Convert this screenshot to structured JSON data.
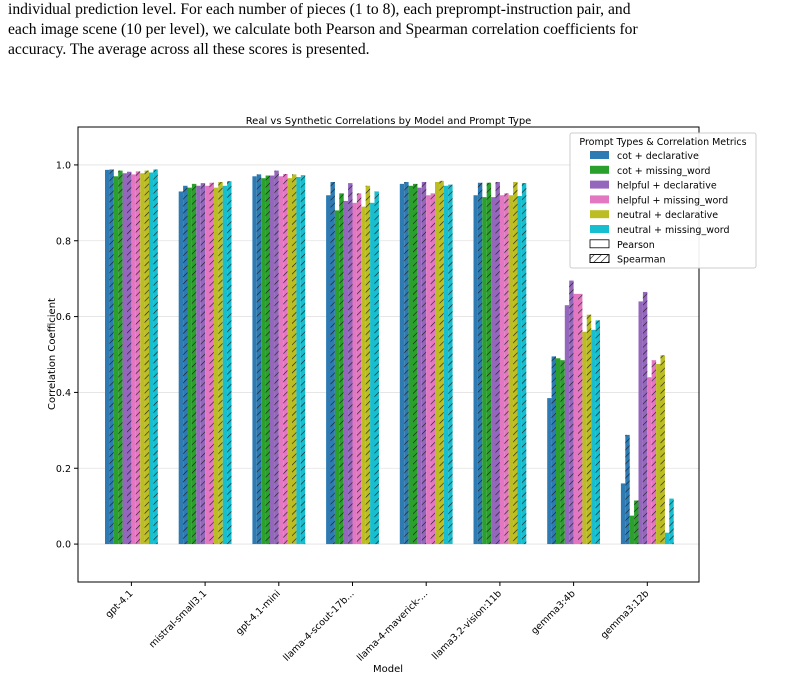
{
  "paragraph": {
    "line1": "individual prediction level. For each number of pieces (1 to 8), each preprompt-instruction pair, and",
    "line2": "each image scene (10 per level), we calculate both Pearson and Spearman correlation coefficients for",
    "line3": "accuracy. The average across all these scores is presented."
  },
  "chart_data": {
    "type": "bar",
    "title": "Real vs Synthetic Correlations by Model and Prompt Type",
    "xlabel": "Model",
    "ylabel": "Correlation Coefficient",
    "ylim": [
      -0.1,
      1.1
    ],
    "yticks": [
      "0.0",
      "0.2",
      "0.4",
      "0.6",
      "0.8",
      "1.0"
    ],
    "grid": "horizontal",
    "legend_position": "top-right",
    "legend_title": "Prompt Types & Correlation Metrics",
    "categories": [
      "gpt-4.1",
      "mistral-small3.1",
      "gpt-4.1-mini",
      "llama-4-scout-17b...",
      "llama-4-maverick-...",
      "llama3.2-vision:11b",
      "gemma3:4b",
      "gemma3:12b"
    ],
    "metrics": [
      "Pearson",
      "Spearman"
    ],
    "series": [
      {
        "name": "cot + declarative",
        "color": "#2e7bb4",
        "pearson": [
          0.987,
          0.93,
          0.97,
          0.92,
          0.95,
          0.92,
          0.385,
          0.16
        ],
        "spearman": [
          0.988,
          0.945,
          0.975,
          0.955,
          0.955,
          0.953,
          0.495,
          0.288
        ]
      },
      {
        "name": "cot + missing_word",
        "color": "#2ca02c",
        "pearson": [
          0.97,
          0.94,
          0.965,
          0.88,
          0.945,
          0.915,
          0.49,
          0.075
        ],
        "spearman": [
          0.985,
          0.95,
          0.972,
          0.925,
          0.95,
          0.953,
          0.485,
          0.115
        ]
      },
      {
        "name": "helpful + declarative",
        "color": "#9467bd",
        "pearson": [
          0.978,
          0.945,
          0.972,
          0.905,
          0.94,
          0.915,
          0.63,
          0.64
        ],
        "spearman": [
          0.982,
          0.952,
          0.985,
          0.952,
          0.955,
          0.955,
          0.695,
          0.665
        ]
      },
      {
        "name": "helpful + missing_word",
        "color": "#e377c2",
        "pearson": [
          0.975,
          0.945,
          0.97,
          0.9,
          0.92,
          0.92,
          0.66,
          0.44
        ],
        "spearman": [
          0.983,
          0.953,
          0.976,
          0.925,
          0.925,
          0.925,
          0.66,
          0.485
        ]
      },
      {
        "name": "neutral + declarative",
        "color": "#bcbd22",
        "pearson": [
          0.978,
          0.94,
          0.965,
          0.89,
          0.955,
          0.92,
          0.56,
          0.475
        ],
        "spearman": [
          0.985,
          0.955,
          0.975,
          0.945,
          0.958,
          0.955,
          0.605,
          0.498
        ]
      },
      {
        "name": "neutral + missing_word",
        "color": "#17becf",
        "pearson": [
          0.98,
          0.945,
          0.968,
          0.9,
          0.945,
          0.918,
          0.565,
          0.03
        ],
        "spearman": [
          0.988,
          0.957,
          0.973,
          0.93,
          0.948,
          0.952,
          0.59,
          0.12
        ]
      }
    ]
  }
}
